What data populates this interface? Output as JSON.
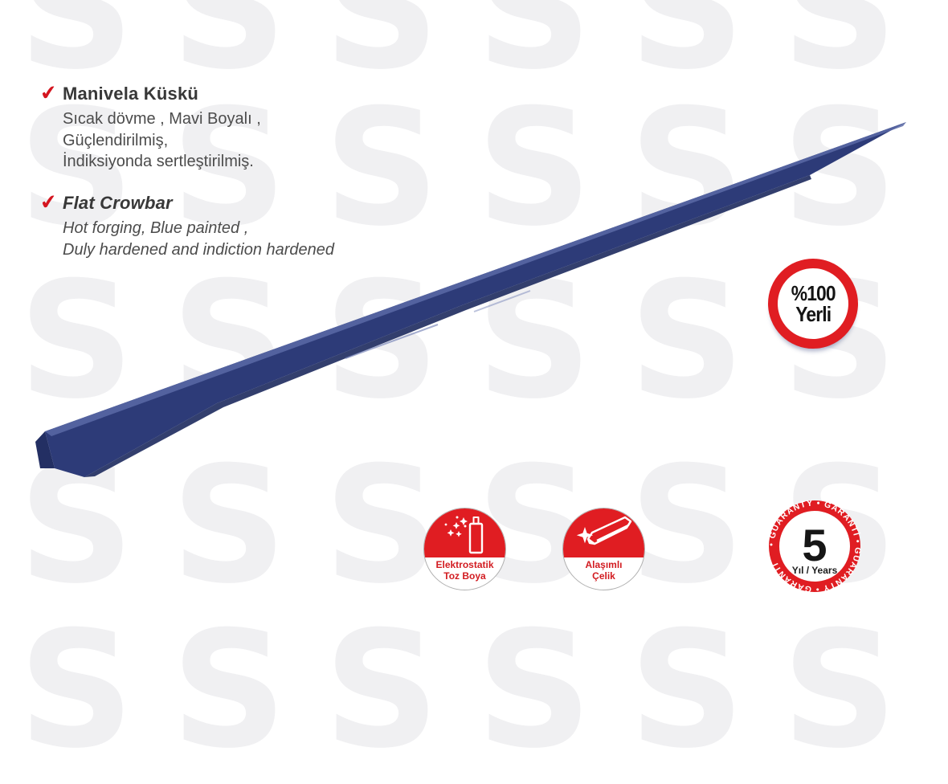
{
  "product": {
    "title_tr": "Manivela Küskü",
    "desc_tr": [
      "Sıcak dövme , Mavi Boyalı ,",
      "Güçlendirilmiş,",
      "İndiksiyonda sertleştirilmiş."
    ],
    "title_en": "Flat Crowbar",
    "desc_en": [
      "Hot forging, Blue painted ,",
      "Duly hardened and indiction hardened"
    ]
  },
  "ui": {
    "check": "✔"
  },
  "badges": {
    "yerli": {
      "line1": "%100",
      "line2": "Yerli"
    },
    "coating": {
      "line1": "Elektrostatik",
      "line2": "Toz Boya"
    },
    "steel": {
      "line1": "Alaşımlı",
      "line2": "Çelik"
    },
    "guarantee": {
      "number": "5",
      "caption": "Yıl / Years",
      "ring_text": "• GUARANTY •  GARANTİ  • GUARANTY •  GARANTİ "
    }
  },
  "colors": {
    "badge_red": "#e01d22",
    "check_red": "#d4151f",
    "bar_blue": "#2d3b78",
    "bar_highlight": "#5b6aa6",
    "bar_shade": "#1d2a5e",
    "text_dark": "#383838",
    "text_body": "#4c4c4c",
    "watermark_gray": "#f0f0f2"
  },
  "watermark": {
    "glyph": "S",
    "color": "#f0f0f2",
    "columns": [
      95,
      285,
      475,
      665,
      855,
      1045
    ],
    "rows": [
      15,
      210,
      425,
      655,
      860
    ]
  }
}
